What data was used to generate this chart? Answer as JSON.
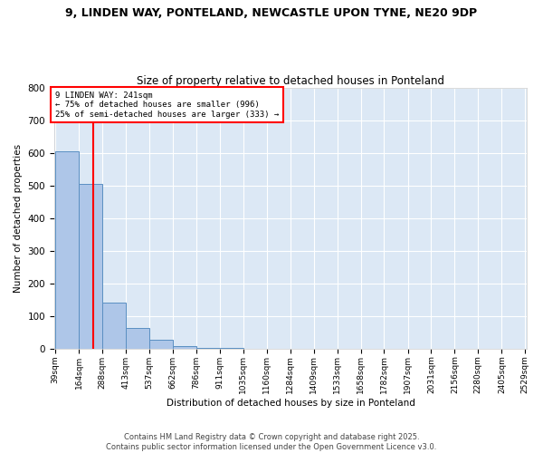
{
  "title1": "9, LINDEN WAY, PONTELAND, NEWCASTLE UPON TYNE, NE20 9DP",
  "title2": "Size of property relative to detached houses in Ponteland",
  "xlabel": "Distribution of detached houses by size in Ponteland",
  "ylabel": "Number of detached properties",
  "bar_edges": [
    39,
    164,
    288,
    413,
    537,
    662,
    786,
    911,
    1035,
    1160,
    1284,
    1409,
    1533,
    1658,
    1782,
    1907,
    2031,
    2156,
    2280,
    2405,
    2529
  ],
  "bar_values": [
    605,
    505,
    140,
    62,
    27,
    8,
    2,
    1,
    0,
    0,
    0,
    0,
    0,
    0,
    0,
    0,
    0,
    0,
    0,
    0
  ],
  "bar_color": "#aec6e8",
  "bar_edge_color": "#5a8fc2",
  "background_color": "#dce8f5",
  "vline_x": 241,
  "vline_color": "red",
  "annotation_text": "9 LINDEN WAY: 241sqm\n← 75% of detached houses are smaller (996)\n25% of semi-detached houses are larger (333) →",
  "annotation_box_color": "white",
  "annotation_box_edge": "red",
  "ylim": [
    0,
    800
  ],
  "yticks": [
    0,
    100,
    200,
    300,
    400,
    500,
    600,
    700,
    800
  ],
  "tick_labels": [
    "39sqm",
    "164sqm",
    "288sqm",
    "413sqm",
    "537sqm",
    "662sqm",
    "786sqm",
    "911sqm",
    "1035sqm",
    "1160sqm",
    "1284sqm",
    "1409sqm",
    "1533sqm",
    "1658sqm",
    "1782sqm",
    "1907sqm",
    "2031sqm",
    "2156sqm",
    "2280sqm",
    "2405sqm",
    "2529sqm"
  ],
  "footer_text": "Contains HM Land Registry data © Crown copyright and database right 2025.\nContains public sector information licensed under the Open Government Licence v3.0.",
  "title_fontsize": 9,
  "subtitle_fontsize": 8.5,
  "axis_label_fontsize": 7.5,
  "tick_fontsize": 6.5,
  "footer_fontsize": 6.0
}
